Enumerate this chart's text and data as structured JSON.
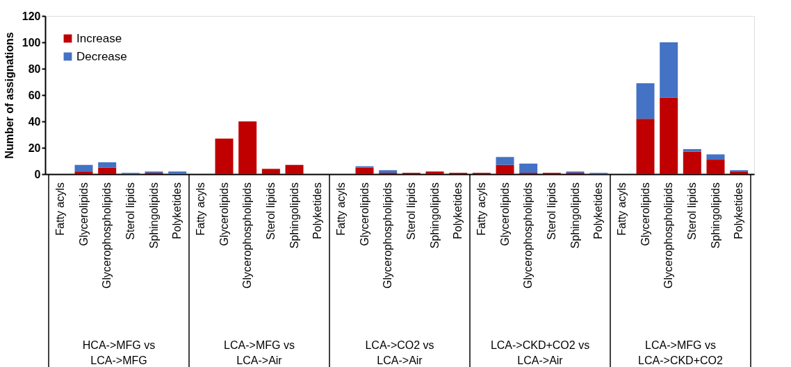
{
  "chart_data": {
    "type": "bar",
    "stacked": true,
    "ylabel": "Number of assignations",
    "categories": [
      "Fatty acyls",
      "Glycerolipids",
      "Glycerophospholipids",
      "Sterol lipids",
      "Sphingolipids",
      "Polyketides",
      "Fatty acyls",
      "Glycerolipids",
      "Glycerophospholipids",
      "Sterol lipids",
      "Sphingolipids",
      "Polyketides",
      "Fatty acyls",
      "Glycerolipids",
      "Glycerophospholipids",
      "Sterol lipids",
      "Sphingolipids",
      "Polyketides",
      "Fatty acyls",
      "Glycerolipids",
      "Glycerophospholipids",
      "Sterol lipids",
      "Sphingolipids",
      "Polyketides",
      "Fatty acyls",
      "Glycerolipids",
      "Glycerophospholipids",
      "Sterol lipids",
      "Sphingolipids",
      "Polyketides"
    ],
    "series": [
      {
        "name": "Increase",
        "color": "#c00000",
        "values": [
          0,
          2,
          5,
          0,
          1,
          0,
          0,
          27,
          40,
          4,
          7,
          0,
          0,
          5,
          1,
          1,
          2,
          1,
          1,
          7,
          1,
          1,
          1,
          0,
          0,
          42,
          58,
          17,
          11,
          2
        ]
      },
      {
        "name": "Decrease",
        "color": "#4472c4",
        "values": [
          0,
          5,
          4,
          1,
          1,
          2,
          0,
          0,
          0,
          0,
          0,
          0,
          0,
          1,
          2,
          0,
          0,
          0,
          0,
          6,
          7,
          0,
          1,
          1,
          0,
          27,
          42,
          2,
          4,
          1
        ]
      }
    ],
    "annotations": [
      "HCA->MFG vs LCA->MFG",
      "LCA->MFG vs LCA->Air",
      "LCA->CO2 vs LCA->Air",
      "LCA->CKD+CO2 vs LCA->Air",
      "LCA->MFG vs LCA->CKD+CO2"
    ],
    "ylim": [
      0,
      120
    ],
    "yticks": [
      0,
      20,
      40,
      60,
      80,
      100,
      120
    ],
    "grid": false,
    "legend": "top left"
  }
}
